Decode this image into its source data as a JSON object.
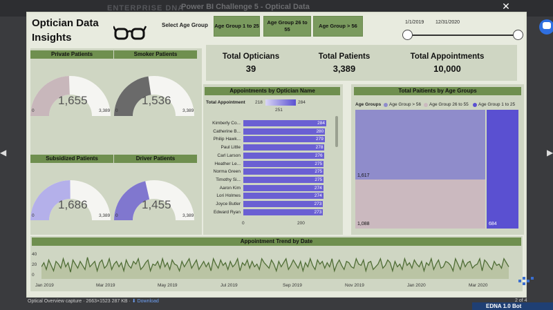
{
  "browser": {
    "brand": "ENTERPRISE DNA",
    "title": "Power BI Challenge 5 - Optical Data",
    "close_icon": "close-icon"
  },
  "dashboard": {
    "title_line1": "Optician Data",
    "title_line2": "Insights",
    "select_label": "Select Age Group",
    "age_buttons": [
      "Age Group 1 to 25",
      "Age Group 26 to 55",
      "Age Group > 56"
    ],
    "date_start": "1/1/2019",
    "date_end": "12/31/2020"
  },
  "gauges": [
    {
      "label": "Private Patients",
      "value": "1,655",
      "min": "0",
      "max": "3,389",
      "fill": 0.488,
      "color": "#c8b7bb"
    },
    {
      "label": "Smoker Patients",
      "value": "1,536",
      "min": "0",
      "max": "3,389",
      "fill": 0.453,
      "color": "#6a6a6a"
    },
    {
      "label": "Subsidized Patients",
      "value": "1,686",
      "min": "0",
      "max": "3,389",
      "fill": 0.497,
      "color": "#b4b0ea"
    },
    {
      "label": "Driver Patients",
      "value": "1,455",
      "min": "0",
      "max": "3,389",
      "fill": 0.429,
      "color": "#8077cf"
    }
  ],
  "kpis": [
    {
      "label": "Total Opticians",
      "value": "39"
    },
    {
      "label": "Total Patients",
      "value": "3,389"
    },
    {
      "label": "Total Appointments",
      "value": "10,000"
    }
  ],
  "appointments_chart": {
    "header": "Appointments by Optician Name",
    "legend_label": "Total Appointment",
    "legend_min": "218",
    "legend_max": "284",
    "legend_mid": "251",
    "opticians": [
      {
        "name": "Kimberly Co...",
        "value": 284
      },
      {
        "name": "Catherine B...",
        "value": 280
      },
      {
        "name": "Philip Hawk...",
        "value": 279
      },
      {
        "name": "Paul Little",
        "value": 278
      },
      {
        "name": "Carl Larson",
        "value": 276
      },
      {
        "name": "Heather Le...",
        "value": 275
      },
      {
        "name": "Norma Green",
        "value": 275
      },
      {
        "name": "Timothy Si...",
        "value": 275
      },
      {
        "name": "Aaron Kim",
        "value": 274
      },
      {
        "name": "Lori Holmes",
        "value": 274
      },
      {
        "name": "Joyce Butler",
        "value": 273
      },
      {
        "name": "Edward Ryan",
        "value": 273
      }
    ],
    "x_ticks": [
      "0",
      "200"
    ]
  },
  "treemap": {
    "header": "Total Paitients by Age Groups",
    "legend_title": "Age Groups",
    "legend": [
      {
        "label": "Age Group > 56",
        "color": "#8f8ccb"
      },
      {
        "label": "Age Group 26 to 55",
        "color": "#cbb9bf"
      },
      {
        "label": "Age Group 1 to 25",
        "color": "#5a50d1"
      }
    ],
    "values": [
      "1,617",
      "1,088",
      "684"
    ]
  },
  "chart_data": {
    "type": "line",
    "title": "Appointment Trend by Date",
    "x_ticks": [
      "Jan 2019",
      "Mar 2019",
      "May 2019",
      "Jul 2019",
      "Sep 2019",
      "Nov 2019",
      "Jan 2020",
      "Mar 2020"
    ],
    "y_ticks": [
      "0",
      "20",
      "40"
    ],
    "ylim": [
      0,
      45
    ],
    "series": [
      {
        "name": "",
        "color": "#4f6d36",
        "values": [
          18,
          24,
          14,
          28,
          20,
          12,
          26,
          22,
          16,
          30,
          18,
          24,
          10,
          28,
          22,
          16,
          26,
          20,
          14,
          32,
          18,
          22,
          26,
          12,
          24,
          28,
          16,
          20,
          30,
          14,
          22,
          26,
          18,
          24,
          12,
          28,
          20,
          16,
          26,
          22,
          30,
          14,
          18,
          24,
          28,
          12,
          22,
          20,
          26,
          16,
          30,
          18,
          24,
          14,
          28,
          22,
          20,
          12,
          26,
          18,
          24,
          30,
          16,
          22,
          28,
          14,
          20,
          26,
          18,
          24,
          12,
          30,
          22,
          16,
          28,
          20,
          24,
          14,
          26,
          18,
          22,
          30,
          12,
          24,
          20,
          28,
          16,
          26,
          18,
          22,
          14,
          30,
          24,
          20,
          16,
          28,
          22,
          12,
          26,
          18,
          24,
          30,
          14,
          20,
          28,
          22,
          16,
          26,
          12,
          24,
          18,
          30,
          20,
          14,
          28,
          22,
          26,
          16,
          24,
          18,
          30,
          12,
          22,
          28,
          20,
          14,
          26,
          24,
          18,
          16,
          30,
          22,
          20,
          28,
          12,
          24,
          26,
          14,
          18,
          22,
          30,
          16,
          20,
          28,
          24,
          12,
          26,
          18,
          22,
          14,
          30,
          20,
          24,
          16,
          28,
          22,
          18,
          26,
          12,
          24,
          20,
          30,
          14,
          22,
          28,
          16,
          18,
          26,
          24,
          20,
          12,
          30,
          22,
          14,
          28,
          18,
          24,
          26,
          16,
          20,
          22,
          30,
          12,
          28,
          24,
          18,
          14,
          26,
          20,
          22,
          16,
          30,
          24,
          18
        ]
      }
    ]
  },
  "footer": {
    "capture_text": "Optical Overview capture · 2663×1523 287 KB ·",
    "download_label": "Download",
    "page_indicator": "2 of 4",
    "edna_label": "EDNA 1.0 Bot"
  }
}
